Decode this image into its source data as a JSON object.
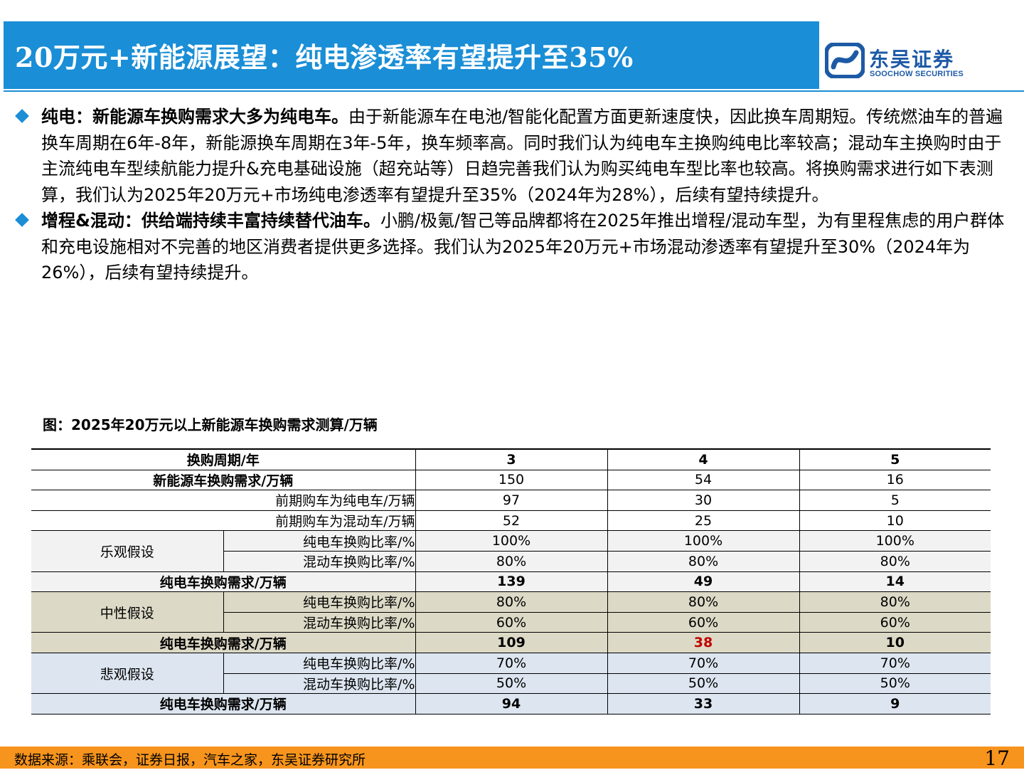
{
  "header": {
    "title": "20万元+新能源展望：纯电渗透率有望提升至35%",
    "logo_cn": "东吴证券",
    "logo_en": "SOOCHOW SECURITIES",
    "brand_color": "#1a8ed6"
  },
  "bullets": [
    {
      "bold": "纯电：新能源车换购需求大多为纯电车。",
      "text": "由于新能源车在电池/智能化配置方面更新速度快，因此换车周期短。传统燃油车的普遍换车周期在6年-8年，新能源换车周期在3年-5年，换车频率高。同时我们认为纯电车主换购纯电比率较高；混动车主换购时由于主流纯电车型续航能力提升&充电基础设施（超充站等）日趋完善我们认为购买纯电车型比率也较高。将换购需求进行如下表测算，我们认为2025年20万元+市场纯电渗透率有望提升至35%（2024年为28%），后续有望持续提升。"
    },
    {
      "bold": "增程&混动：供给端持续丰富持续替代油车。",
      "text": "小鹏/极氪/智己等品牌都将在2025年推出增程/混动车型，为有里程焦虑的用户群体和充电设施相对不完善的地区消费者提供更多选择。我们认为2025年20万元+市场混动渗透率有望提升至30%（2024年为26%），后续有望持续提升。"
    }
  ],
  "figure": {
    "caption": "图：2025年20万元以上新能源车换购需求测算/万辆"
  },
  "table": {
    "header": {
      "label": "换购周期/年",
      "cols": [
        "3",
        "4",
        "5"
      ]
    },
    "demand": {
      "label": "新能源车换购需求/万辆",
      "values": [
        "150",
        "54",
        "16"
      ]
    },
    "prev_bev": {
      "label": "前期购车为纯电车/万辆",
      "values": [
        "97",
        "30",
        "5"
      ]
    },
    "prev_hev": {
      "label": "前期购车为混动车/万辆",
      "values": [
        "52",
        "25",
        "10"
      ]
    },
    "scenarios": [
      {
        "name": "乐观假设",
        "bev_ratio_label": "纯电车换购比率/%",
        "bev_ratio": [
          "100%",
          "100%",
          "100%"
        ],
        "hev_ratio_label": "混动车换购比率/%",
        "hev_ratio": [
          "80%",
          "80%",
          "80%"
        ],
        "result_label": "纯电车换购需求/万辆",
        "result": [
          "139",
          "49",
          "14"
        ]
      },
      {
        "name": "中性假设",
        "bev_ratio_label": "纯电车换购比率/%",
        "bev_ratio": [
          "80%",
          "80%",
          "80%"
        ],
        "hev_ratio_label": "混动车换购比率/%",
        "hev_ratio": [
          "60%",
          "60%",
          "60%"
        ],
        "result_label": "纯电车换购需求/万辆",
        "result": [
          "109",
          "38",
          "10"
        ]
      },
      {
        "name": "悲观假设",
        "bev_ratio_label": "纯电车换购比率/%",
        "bev_ratio": [
          "70%",
          "70%",
          "70%"
        ],
        "hev_ratio_label": "混动车换购比率/%",
        "hev_ratio": [
          "50%",
          "50%",
          "50%"
        ],
        "result_label": "纯电车换购需求/万辆",
        "result": [
          "94",
          "33",
          "9"
        ]
      }
    ]
  },
  "footer": {
    "source": "数据来源：乘联会，证券日报，汽车之家，东吴证券研究所",
    "page": "17",
    "color": "#f7941d"
  }
}
